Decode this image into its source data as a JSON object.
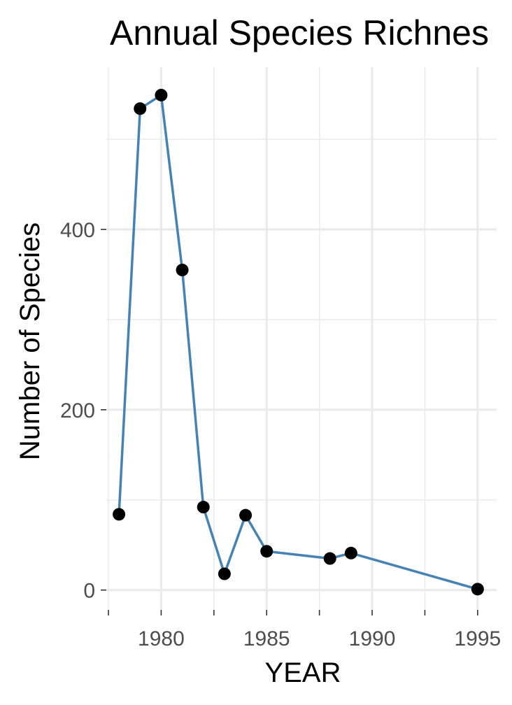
{
  "chart_data": {
    "type": "line",
    "title": "Annual Species Richnes",
    "xlabel": "YEAR",
    "ylabel": "Number of Species",
    "x": [
      1978,
      1979,
      1980,
      1981,
      1982,
      1983,
      1984,
      1985,
      1988,
      1989,
      1995
    ],
    "series": [
      {
        "values": [
          84,
          534,
          549,
          355,
          92,
          18,
          83,
          43,
          35,
          41,
          1
        ]
      }
    ],
    "xlim": [
      1977.4,
      1995.9
    ],
    "ylim": [
      -22,
      580
    ],
    "x_ticks": [
      1980,
      1985,
      1990,
      1995
    ],
    "y_ticks": [
      0,
      200,
      400
    ],
    "grid": true,
    "line_color": "#4682b4",
    "point_color": "#000000"
  }
}
